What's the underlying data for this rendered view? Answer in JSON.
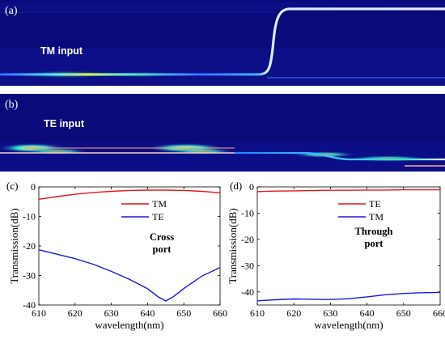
{
  "field_panels": {
    "a": {
      "letter": "(a)",
      "label": "TM input"
    },
    "b": {
      "letter": "(b)",
      "label": "TE input"
    }
  },
  "colors": {
    "field_background": "#0a0a7a",
    "series_red": "#e8141c",
    "series_blue": "#1a1adc"
  },
  "chart_data": [
    {
      "type": "line",
      "panel_letter": "(c)",
      "xlabel": "wavelength(nm)",
      "ylabel": "Transmission(dB)",
      "xlim": [
        610,
        660
      ],
      "ylim": [
        -40,
        0
      ],
      "xticks": [
        610,
        620,
        630,
        640,
        650,
        660
      ],
      "yticks": [
        0,
        -10,
        -20,
        -30,
        -40
      ],
      "ytick_labels": [
        "0",
        "-10",
        "-20",
        "-30",
        "-40"
      ],
      "annotation": [
        "Cross",
        "port"
      ],
      "legend_position": "top-right",
      "series": [
        {
          "name": "TM",
          "color": "#e8141c",
          "x": [
            610,
            615,
            620,
            625,
            630,
            635,
            640,
            645,
            650,
            655,
            660
          ],
          "y": [
            -4.2,
            -3.3,
            -2.5,
            -1.9,
            -1.5,
            -1.2,
            -1.1,
            -1.1,
            -1.2,
            -1.5,
            -2.0
          ]
        },
        {
          "name": "TE",
          "color": "#1a1adc",
          "x": [
            610,
            615,
            620,
            625,
            630,
            635,
            640,
            643,
            645,
            647,
            650,
            655,
            660
          ],
          "y": [
            -21.3,
            -22.8,
            -24.3,
            -26.2,
            -28.6,
            -31.3,
            -34.5,
            -37.3,
            -38.6,
            -37.3,
            -34.4,
            -30.2,
            -27.3
          ]
        }
      ]
    },
    {
      "type": "line",
      "panel_letter": "(d)",
      "xlabel": "wavelength(nm)",
      "ylabel": "Transmission(dB)",
      "xlim": [
        610,
        660
      ],
      "ylim": [
        -45,
        0
      ],
      "xticks": [
        610,
        620,
        630,
        640,
        650,
        660
      ],
      "yticks": [
        0,
        -10,
        -20,
        -30,
        -40
      ],
      "ytick_labels": [
        "0",
        "-10",
        "-20",
        "-30",
        "-40"
      ],
      "annotation": [
        "Through",
        "port"
      ],
      "legend_position": "top-right",
      "series": [
        {
          "name": "TE",
          "color": "#e8141c",
          "x": [
            610,
            615,
            620,
            625,
            630,
            635,
            640,
            645,
            650,
            655,
            660
          ],
          "y": [
            -1.8,
            -1.6,
            -1.5,
            -1.4,
            -1.3,
            -1.3,
            -1.2,
            -1.2,
            -1.1,
            -1.1,
            -1.1
          ]
        },
        {
          "name": "TM",
          "color": "#1a1adc",
          "x": [
            610,
            615,
            620,
            625,
            630,
            635,
            640,
            645,
            650,
            655,
            660
          ],
          "y": [
            -43.4,
            -43.0,
            -42.7,
            -42.8,
            -42.9,
            -42.6,
            -41.9,
            -41.1,
            -40.6,
            -40.3,
            -40.2
          ]
        }
      ]
    }
  ]
}
